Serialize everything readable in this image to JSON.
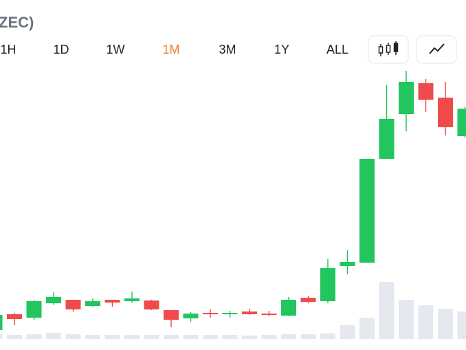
{
  "header": {
    "title": "ZEC)"
  },
  "toolbar": {
    "tabs": [
      "1H",
      "1D",
      "1W",
      "1M",
      "3M",
      "1Y",
      "ALL"
    ],
    "active": 3
  },
  "chart_data": {
    "type": "candlestick",
    "open": [
      10,
      33,
      28,
      49,
      54,
      45,
      54,
      52,
      53,
      39,
      27,
      35,
      33,
      37,
      34,
      31,
      57,
      52,
      103,
      108,
      259,
      324,
      369,
      348,
      292
    ],
    "high": [
      35,
      35,
      54,
      65,
      54,
      56,
      54,
      66,
      54,
      39,
      36,
      40,
      38,
      41,
      38,
      58,
      60,
      113,
      126,
      259,
      366,
      387,
      375,
      371,
      335
    ],
    "low": [
      8,
      17,
      25,
      47,
      37,
      44,
      44,
      50,
      39,
      14,
      22,
      28,
      28,
      32,
      30,
      30,
      49,
      49,
      91,
      108,
      259,
      299,
      327,
      293,
      290
    ],
    "close": [
      32,
      26,
      52,
      58,
      40,
      52,
      50,
      56,
      40,
      25,
      34,
      33,
      35,
      33,
      32,
      54,
      51,
      100,
      109,
      259,
      317,
      371,
      345,
      305,
      332
    ],
    "volume": [
      7,
      6,
      7,
      9,
      7,
      6,
      6,
      6,
      6,
      6,
      6,
      6,
      6,
      5,
      6,
      7,
      7,
      8,
      20,
      31,
      83,
      57,
      49,
      44,
      40
    ],
    "ylim": [
      0,
      400
    ],
    "volume_lim": [
      0,
      100
    ],
    "up_color": "#22c55e",
    "down_color": "#ef4b4b",
    "volume_color": "#e5e8ef"
  }
}
